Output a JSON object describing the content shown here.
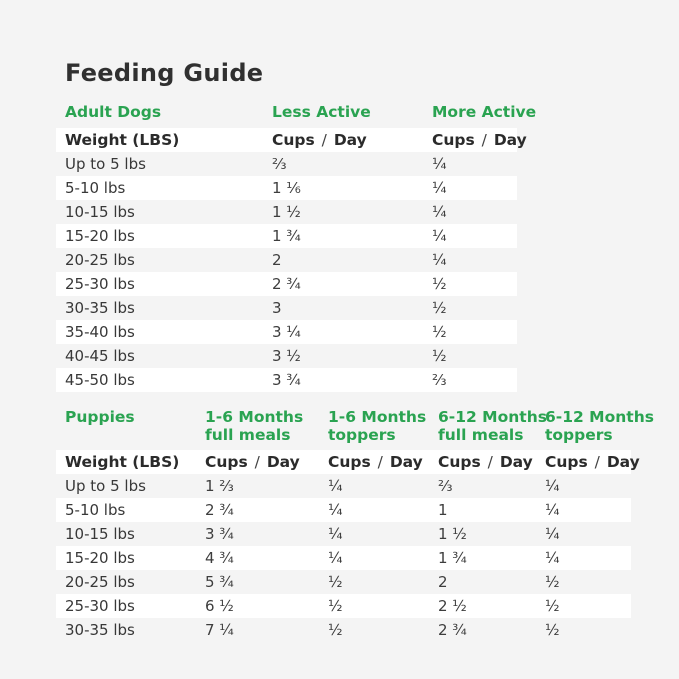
{
  "page": {
    "title": "Feeding Guide"
  },
  "colors": {
    "background": "#f4f4f4",
    "row_stripe_white": "#ffffff",
    "accent_green": "#2aa351",
    "title_text": "#303030",
    "body_text": "#3a3a3a"
  },
  "shared": {
    "weight_header": "Weight (LBS)",
    "cups_label": "Cups",
    "slash": "/",
    "day_label": "Day"
  },
  "adult_table": {
    "section_label": "Adult Dogs",
    "columns": [
      {
        "label_lines": [
          "Less Active"
        ]
      },
      {
        "label_lines": [
          "More Active"
        ]
      }
    ],
    "rows": [
      {
        "weight": "Up to 5 lbs",
        "values": [
          "⅔",
          "¼"
        ]
      },
      {
        "weight": "5-10 lbs",
        "values": [
          "1 ⅙",
          "¼"
        ]
      },
      {
        "weight": "10-15 lbs",
        "values": [
          "1 ½",
          "¼"
        ]
      },
      {
        "weight": "15-20 lbs",
        "values": [
          "1 ¾",
          "¼"
        ]
      },
      {
        "weight": "20-25 lbs",
        "values": [
          "2",
          "¼"
        ]
      },
      {
        "weight": "25-30 lbs",
        "values": [
          "2 ¾",
          "½"
        ]
      },
      {
        "weight": "30-35 lbs",
        "values": [
          "3",
          "½"
        ]
      },
      {
        "weight": "35-40 lbs",
        "values": [
          "3 ¼",
          "½"
        ]
      },
      {
        "weight": "40-45 lbs",
        "values": [
          "3 ½",
          "½"
        ]
      },
      {
        "weight": "45-50 lbs",
        "values": [
          "3 ¾",
          "⅔"
        ]
      }
    ]
  },
  "puppies_table": {
    "section_label": "Puppies",
    "columns": [
      {
        "label_lines": [
          "1-6 Months",
          "full meals"
        ]
      },
      {
        "label_lines": [
          "1-6 Months",
          "toppers"
        ]
      },
      {
        "label_lines": [
          "6-12 Months",
          "full meals"
        ]
      },
      {
        "label_lines": [
          "6-12 Months",
          "toppers"
        ]
      }
    ],
    "rows": [
      {
        "weight": "Up to 5 lbs",
        "values": [
          "1 ⅔",
          "¼",
          "⅔",
          "¼"
        ]
      },
      {
        "weight": "5-10 lbs",
        "values": [
          "2 ¾",
          "¼",
          "1",
          "¼"
        ]
      },
      {
        "weight": "10-15 lbs",
        "values": [
          "3 ¾",
          "¼",
          "1 ½",
          "¼"
        ]
      },
      {
        "weight": "15-20 lbs",
        "values": [
          "4 ¾",
          "¼",
          "1 ¾",
          "¼"
        ]
      },
      {
        "weight": "20-25 lbs",
        "values": [
          "5 ¾",
          "½",
          "2",
          "½"
        ]
      },
      {
        "weight": "25-30 lbs",
        "values": [
          "6 ½",
          "½",
          "2 ½",
          "½"
        ]
      },
      {
        "weight": "30-35 lbs",
        "values": [
          "7 ¼",
          "½",
          "2 ¾",
          "½"
        ]
      }
    ]
  }
}
